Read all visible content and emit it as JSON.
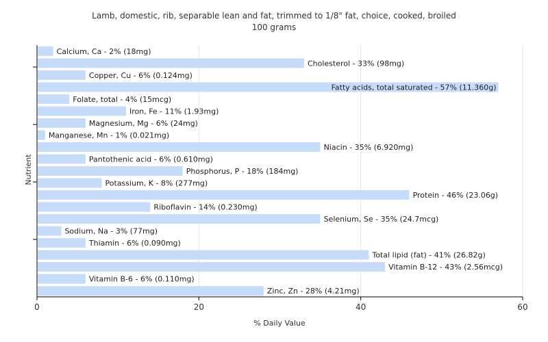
{
  "chart_data": {
    "type": "bar",
    "orientation": "horizontal",
    "title": "Lamb, domestic, rib, separable lean and fat, trimmed to 1/8\" fat, choice, cooked, broiled",
    "subtitle": "100 grams",
    "xlabel": "% Daily Value",
    "ylabel": "Nutrient",
    "xlim": [
      0,
      60
    ],
    "xticks": [
      0,
      20,
      40,
      60
    ],
    "grid": true,
    "bar_color": "#c6dcf8",
    "categories": [
      "Calcium, Ca",
      "Cholesterol",
      "Copper, Cu",
      "Fatty acids, total saturated",
      "Folate, total",
      "Iron, Fe",
      "Magnesium, Mg",
      "Manganese, Mn",
      "Niacin",
      "Pantothenic acid",
      "Phosphorus, P",
      "Potassium, K",
      "Protein",
      "Riboflavin",
      "Selenium, Se",
      "Sodium, Na",
      "Thiamin",
      "Total lipid (fat)",
      "Vitamin B-12",
      "Vitamin B-6",
      "Zinc, Zn"
    ],
    "values": [
      2,
      33,
      6,
      57,
      4,
      11,
      6,
      1,
      35,
      6,
      18,
      8,
      46,
      14,
      35,
      3,
      6,
      41,
      43,
      6,
      28
    ],
    "labels": [
      "Calcium, Ca - 2% (18mg)",
      "Cholesterol - 33% (98mg)",
      "Copper, Cu - 6% (0.124mg)",
      "Fatty acids, total saturated - 57% (11.360g)",
      "Folate, total - 4% (15mcg)",
      "Iron, Fe - 11% (1.93mg)",
      "Magnesium, Mg - 6% (24mg)",
      "Manganese, Mn - 1% (0.021mg)",
      "Niacin - 35% (6.920mg)",
      "Pantothenic acid - 6% (0.610mg)",
      "Phosphorus, P - 18% (184mg)",
      "Potassium, K - 8% (277mg)",
      "Protein - 46% (23.06g)",
      "Riboflavin - 14% (0.230mg)",
      "Selenium, Se - 35% (24.7mcg)",
      "Sodium, Na - 3% (77mg)",
      "Thiamin - 6% (0.090mg)",
      "Total lipid (fat) - 41% (26.82g)",
      "Vitamin B-12 - 43% (2.56mcg)",
      "Vitamin B-6 - 6% (0.110mg)",
      "Zinc, Zn - 28% (4.21mg)"
    ]
  }
}
